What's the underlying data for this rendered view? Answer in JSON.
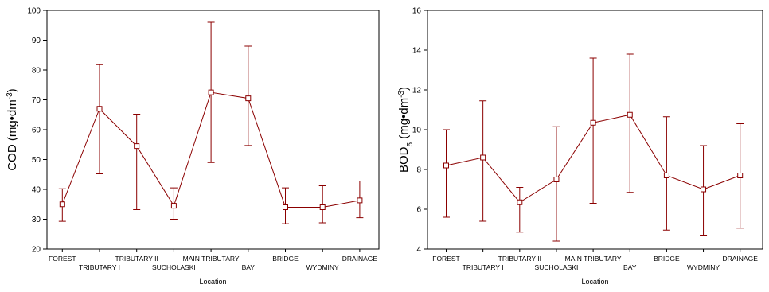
{
  "colors": {
    "series": "#8b0000",
    "axis": "#000000",
    "marker_fill": "#ffffff"
  },
  "chart_data": [
    {
      "type": "line",
      "error_bars": true,
      "xlabel": "Location",
      "ylabel": {
        "main": "COD (mg•dm",
        "sup": "-3",
        "tail": ")"
      },
      "ylim": [
        20,
        100
      ],
      "yticks": [
        "20",
        "30",
        "40",
        "50",
        "60",
        "70",
        "80",
        "90",
        "100"
      ],
      "categories": [
        "FOREST",
        "TRIBUTARY I",
        "TRIBUTARY II",
        "SUCHOLASKI",
        "MAIN TRIBUTARY",
        "BAY",
        "BRIDGE",
        "WYDMINY",
        "DRAINAGE"
      ],
      "series": [
        {
          "values": [
            35,
            67,
            54.5,
            34.5,
            72.5,
            70.5,
            34,
            34,
            36.3
          ],
          "lower": [
            29.3,
            45.2,
            33.2,
            30,
            49,
            54.7,
            28.5,
            28.8,
            30.5
          ],
          "upper": [
            40.2,
            81.8,
            65.2,
            40.5,
            96,
            88,
            40.5,
            41.2,
            42.8
          ]
        }
      ]
    },
    {
      "type": "line",
      "error_bars": true,
      "xlabel": "Location",
      "ylabel": {
        "main": "BOD",
        "sub": "5",
        "mid": " (mg•dm",
        "sup": "-3",
        "tail": ")"
      },
      "ylim": [
        4,
        16
      ],
      "yticks": [
        "4",
        "6",
        "8",
        "10",
        "12",
        "14",
        "16"
      ],
      "categories": [
        "FOREST",
        "TRIBUTARY I",
        "TRIBUTARY II",
        "SUCHOLASKI",
        "MAIN TRIBUTARY",
        "BAY",
        "BRIDGE",
        "WYDMINY",
        "DRAINAGE"
      ],
      "series": [
        {
          "values": [
            8.2,
            8.6,
            6.35,
            7.5,
            10.35,
            10.75,
            7.7,
            7.0,
            7.7
          ],
          "lower": [
            5.6,
            5.4,
            4.85,
            4.4,
            6.3,
            6.85,
            4.95,
            4.7,
            5.05
          ],
          "upper": [
            10.0,
            11.45,
            7.1,
            10.15,
            13.6,
            13.8,
            10.65,
            9.2,
            10.3
          ]
        }
      ]
    }
  ]
}
